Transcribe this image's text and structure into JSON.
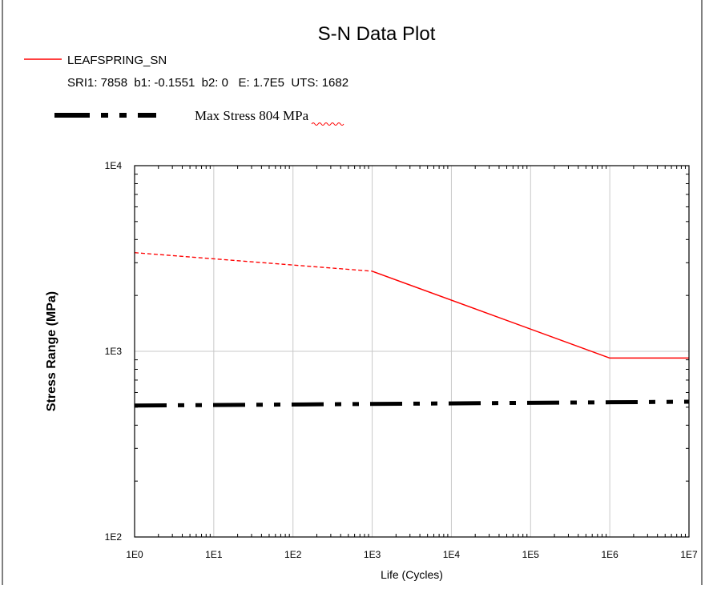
{
  "chart_data": {
    "type": "line",
    "title": "S-N Data Plot",
    "xlabel": "Life (Cycles)",
    "ylabel": "Stress Range (MPa)",
    "x_scale": "log",
    "y_scale": "log",
    "xlim": [
      1,
      10000000
    ],
    "ylim": [
      100,
      10000
    ],
    "grid": true,
    "x_ticks": [
      "1E0",
      "1E1",
      "1E2",
      "1E3",
      "1E4",
      "1E5",
      "1E6",
      "1E7"
    ],
    "y_ticks": [
      "1E2",
      "1E3",
      "1E4"
    ],
    "legend": {
      "placement": "top-left",
      "entries": [
        {
          "name": "LEAFSPRING_SN",
          "parameters": "SRI1: 7858  b1: -0.1551  b2: 0   E: 1.7E5  UTS: 1682",
          "color": "#ff0000"
        },
        {
          "name": "Max Stress 804 MPa",
          "color": "#000000"
        }
      ]
    },
    "series": [
      {
        "name": "LEAFSPRING_SN",
        "color": "#ff0000",
        "segments": [
          {
            "style": "dashed",
            "x": [
              1,
              1000
            ],
            "y": [
              3400,
              2700
            ]
          },
          {
            "style": "solid",
            "x": [
              1000,
              1000000,
              10000000
            ],
            "y": [
              2700,
              920,
              920
            ]
          }
        ]
      },
      {
        "name": "Max Stress 804 MPa",
        "color": "#000000",
        "style": "dash-dot",
        "x": [
          1,
          10000000
        ],
        "y": [
          510,
          535
        ]
      }
    ]
  }
}
